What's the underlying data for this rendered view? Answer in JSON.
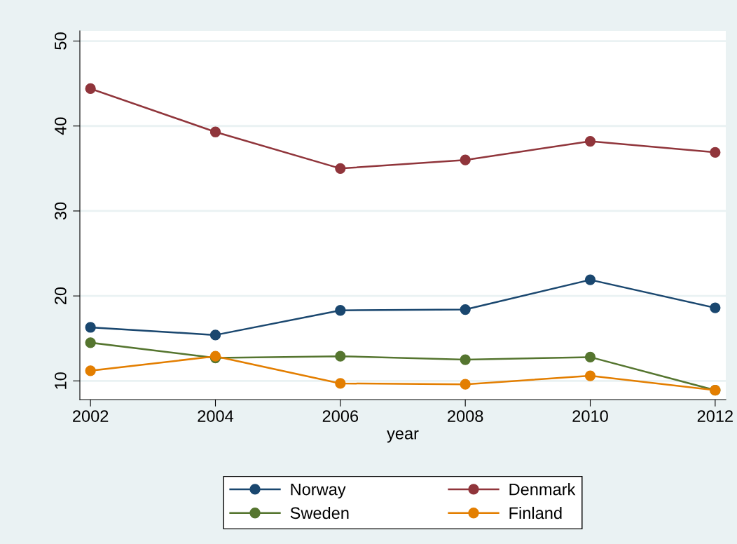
{
  "chart_data": {
    "type": "line",
    "xlabel": "year",
    "x": [
      2002,
      2004,
      2006,
      2008,
      2010,
      2012
    ],
    "series": [
      {
        "name": "Norway",
        "color": "#1a476f",
        "values": [
          16.3,
          15.4,
          18.3,
          18.4,
          21.9,
          18.6
        ]
      },
      {
        "name": "Denmark",
        "color": "#90353b",
        "values": [
          44.4,
          39.3,
          35.0,
          36.0,
          38.2,
          36.9
        ]
      },
      {
        "name": "Sweden",
        "color": "#55752f",
        "values": [
          14.5,
          12.7,
          12.9,
          12.5,
          12.8,
          8.9
        ]
      },
      {
        "name": "Finland",
        "color": "#e37e00",
        "values": [
          11.2,
          12.9,
          9.7,
          9.6,
          10.6,
          8.9
        ]
      }
    ],
    "xlim": [
      2001.83,
      2012.17
    ],
    "xticks": [
      2002,
      2004,
      2006,
      2008,
      2010,
      2012
    ],
    "ylim": [
      7.8,
      51.2
    ],
    "yticks": [
      10,
      20,
      30,
      40,
      50
    ],
    "grid": "y",
    "legend": "bottom",
    "marker": "circle",
    "line_style": "solid"
  }
}
